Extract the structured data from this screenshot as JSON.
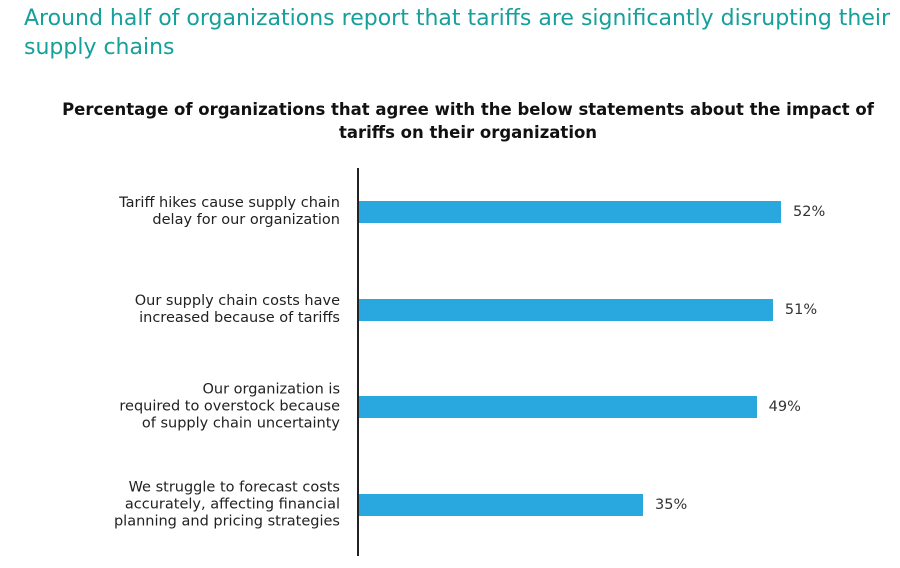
{
  "chart_data": {
    "type": "bar",
    "orientation": "horizontal",
    "title": "Around half of organizations report that tariffs are significantly disrupting their supply chains",
    "subtitle": "Percentage of organizations that agree with the below statements about the impact of tariffs on their organization",
    "categories": [
      "Tariff hikes cause supply chain\ndelay for our organization",
      "Our supply chain costs have\nincreased because of tariffs",
      "Our organization is\nrequired to overstock because\nof supply chain uncertainty",
      "We struggle to forecast costs\naccurately, affecting financial\nplanning and pricing strategies"
    ],
    "values": [
      52,
      51,
      49,
      35
    ],
    "value_labels": [
      "52%",
      "51%",
      "49%",
      "35%"
    ],
    "color": "#29a8df"
  }
}
